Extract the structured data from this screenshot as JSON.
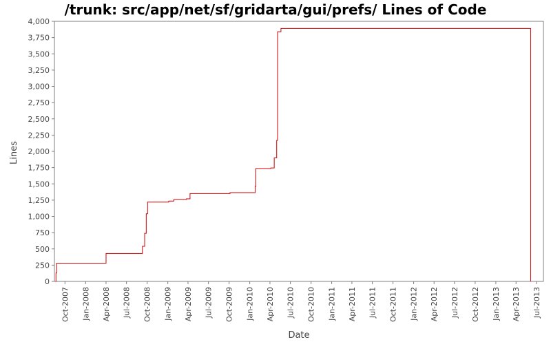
{
  "chart_data": {
    "type": "line",
    "title": "/trunk: src/app/net/sf/gridarta/gui/prefs/ Lines of Code",
    "xlabel": "Date",
    "ylabel": "Lines",
    "ylim": [
      0,
      4000
    ],
    "x_range": [
      "2007-08-15",
      "2013-08-01"
    ],
    "y_ticks": [
      {
        "value": 0,
        "label": "0"
      },
      {
        "value": 250,
        "label": "250"
      },
      {
        "value": 500,
        "label": "500"
      },
      {
        "value": 750,
        "label": "750"
      },
      {
        "value": 1000,
        "label": "1,000"
      },
      {
        "value": 1250,
        "label": "1,250"
      },
      {
        "value": 1500,
        "label": "1,500"
      },
      {
        "value": 1750,
        "label": "1,750"
      },
      {
        "value": 2000,
        "label": "2,000"
      },
      {
        "value": 2250,
        "label": "2,250"
      },
      {
        "value": 2500,
        "label": "2,500"
      },
      {
        "value": 2750,
        "label": "2,750"
      },
      {
        "value": 3000,
        "label": "3,000"
      },
      {
        "value": 3250,
        "label": "3,250"
      },
      {
        "value": 3500,
        "label": "3,500"
      },
      {
        "value": 3750,
        "label": "3,750"
      },
      {
        "value": 4000,
        "label": "4,000"
      }
    ],
    "x_ticks": [
      {
        "date": "2007-10-01",
        "label": "Oct-2007"
      },
      {
        "date": "2008-01-01",
        "label": "Jan-2008"
      },
      {
        "date": "2008-04-01",
        "label": "Apr-2008"
      },
      {
        "date": "2008-07-01",
        "label": "Jul-2008"
      },
      {
        "date": "2008-10-01",
        "label": "Oct-2008"
      },
      {
        "date": "2009-01-01",
        "label": "Jan-2009"
      },
      {
        "date": "2009-04-01",
        "label": "Apr-2009"
      },
      {
        "date": "2009-07-01",
        "label": "Jul-2009"
      },
      {
        "date": "2009-10-01",
        "label": "Oct-2009"
      },
      {
        "date": "2010-01-01",
        "label": "Jan-2010"
      },
      {
        "date": "2010-04-01",
        "label": "Apr-2010"
      },
      {
        "date": "2010-07-01",
        "label": "Jul-2010"
      },
      {
        "date": "2010-10-01",
        "label": "Oct-2010"
      },
      {
        "date": "2011-01-01",
        "label": "Jan-2011"
      },
      {
        "date": "2011-04-01",
        "label": "Apr-2011"
      },
      {
        "date": "2011-07-01",
        "label": "Jul-2011"
      },
      {
        "date": "2011-10-01",
        "label": "Oct-2011"
      },
      {
        "date": "2012-01-01",
        "label": "Jan-2012"
      },
      {
        "date": "2012-04-01",
        "label": "Apr-2012"
      },
      {
        "date": "2012-07-01",
        "label": "Jul-2012"
      },
      {
        "date": "2012-10-01",
        "label": "Oct-2012"
      },
      {
        "date": "2013-01-01",
        "label": "Jan-2013"
      },
      {
        "date": "2013-04-01",
        "label": "Apr-2013"
      },
      {
        "date": "2013-07-01",
        "label": "Jul-2013"
      }
    ],
    "grid": false,
    "legend": "none",
    "series": [
      {
        "color": "#cc0000",
        "step": true,
        "points": [
          {
            "x": "2007-08-20",
            "y": 0
          },
          {
            "x": "2007-08-22",
            "y": 130
          },
          {
            "x": "2007-08-25",
            "y": 280
          },
          {
            "x": "2008-04-01",
            "y": 430
          },
          {
            "x": "2008-09-10",
            "y": 540
          },
          {
            "x": "2008-09-20",
            "y": 740
          },
          {
            "x": "2008-09-27",
            "y": 1040
          },
          {
            "x": "2008-10-03",
            "y": 1220
          },
          {
            "x": "2009-01-05",
            "y": 1235
          },
          {
            "x": "2009-01-28",
            "y": 1260
          },
          {
            "x": "2009-03-25",
            "y": 1270
          },
          {
            "x": "2009-04-10",
            "y": 1350
          },
          {
            "x": "2009-10-05",
            "y": 1365
          },
          {
            "x": "2010-01-25",
            "y": 1460
          },
          {
            "x": "2010-01-28",
            "y": 1735
          },
          {
            "x": "2010-04-05",
            "y": 1745
          },
          {
            "x": "2010-04-20",
            "y": 1900
          },
          {
            "x": "2010-05-01",
            "y": 2170
          },
          {
            "x": "2010-05-05",
            "y": 3840
          },
          {
            "x": "2010-05-20",
            "y": 3890
          },
          {
            "x": "2013-06-05",
            "y": 3890
          },
          {
            "x": "2013-06-05",
            "y": 0
          }
        ]
      }
    ]
  }
}
